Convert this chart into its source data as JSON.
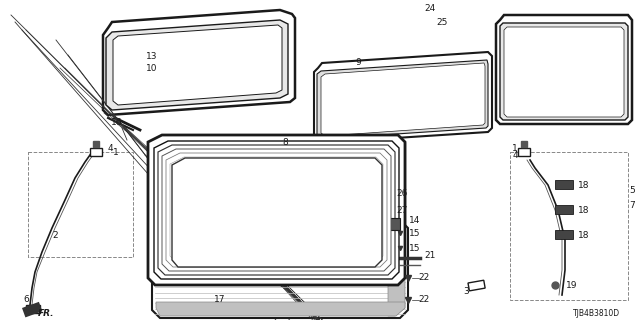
{
  "bg_color": "#ffffff",
  "diagram_id": "TJB4B3810D",
  "line_color": "#1a1a1a",
  "text_color": "#1a1a1a",
  "font_size": 6.5,
  "small_font_size": 5.5
}
